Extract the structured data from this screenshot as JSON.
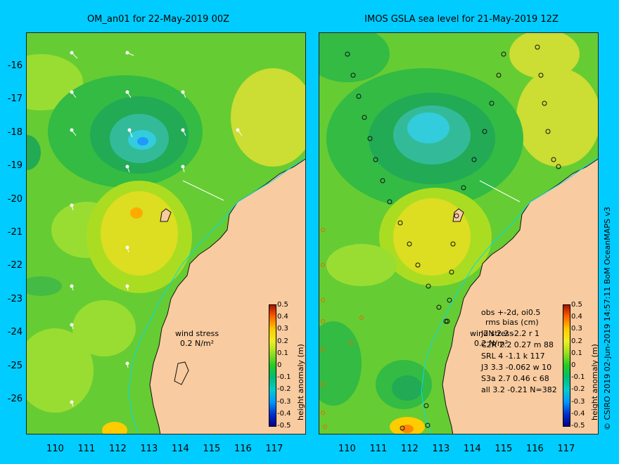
{
  "left_panel": {
    "title": "OM_an01 for 22-May-2019 00Z",
    "wind_label_line1": "wind stress",
    "wind_label_line2": "0.2 N/m²"
  },
  "right_panel": {
    "title": "IMOS GSLA sea level  for 21-May-2019 12Z",
    "wind_label_line1": "wind stress",
    "wind_label_line2": "0.2 N/m²",
    "stats_header1": "obs +-2d, oi0.5",
    "stats_header2": "rms    bias (cm)",
    "stats_rows": [
      "J2N    2.2 -2.2 r 1",
      "C2R    2.2 0.27 m 88",
      "SRL     4  -1.1 k 117",
      "J3      3.3 -0.062 w 10",
      "S3a    2.7 0.46 c 68",
      "all     3.2 -0.21 N=382"
    ]
  },
  "axes": {
    "y_ticks": [
      "-16",
      "-17",
      "-18",
      "-19",
      "-20",
      "-21",
      "-22",
      "-23",
      "-24",
      "-25",
      "-26"
    ],
    "x_ticks": [
      "110",
      "111",
      "112",
      "113",
      "114",
      "115",
      "116",
      "117"
    ]
  },
  "colorbar": {
    "title": "height anomaly (m)",
    "ticks": [
      "0.5",
      "0.4",
      "0.3",
      "0.2",
      "0.1",
      "0",
      "-0.1",
      "-0.2",
      "-0.3",
      "-0.4",
      "-0.5"
    ]
  },
  "credit": "© CSIRO 2019   02-Jun-2019 14:57:11 BoM OceanMAPS v3",
  "colors": {
    "background": "#00ccff",
    "land": "#f8cba0",
    "ocean_green": "#66cc33",
    "ocean_dark_green": "#22aa44",
    "ocean_teal": "#33ccaa",
    "ocean_yellow": "#ccdd33",
    "ocean_orange": "#ffcc00"
  }
}
